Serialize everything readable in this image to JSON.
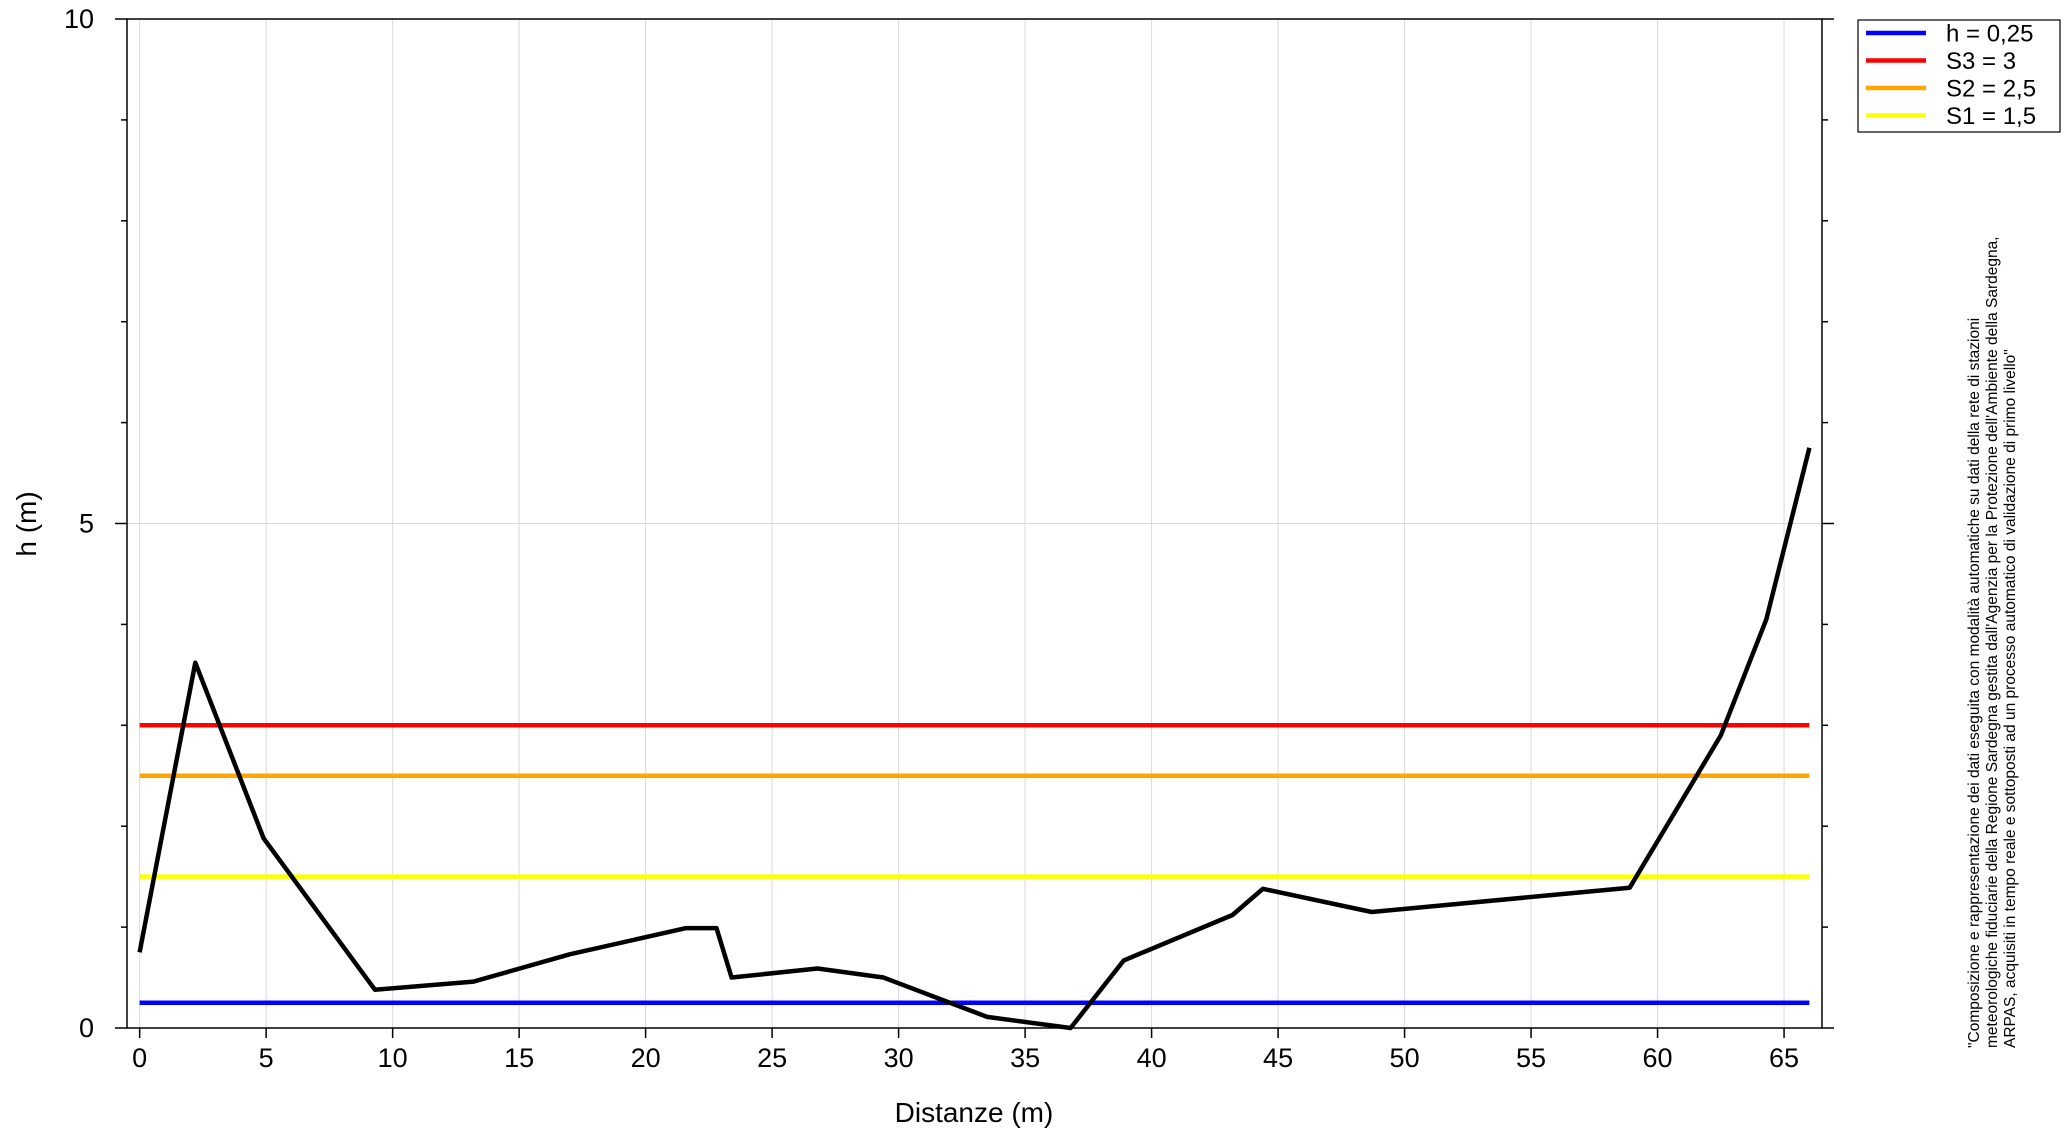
{
  "chart_data": {
    "type": "line",
    "xlabel": "Distanze (m)",
    "ylabel": "h (m)",
    "xlim": [
      -0.5,
      66.5
    ],
    "ylim": [
      0,
      10
    ],
    "x_ticks": [
      0,
      5,
      10,
      15,
      20,
      25,
      30,
      35,
      40,
      45,
      50,
      55,
      60,
      65
    ],
    "y_ticks": [
      0,
      5,
      10
    ],
    "y_minor_step": 1,
    "grid": true,
    "legend_position": "top-right, outside plot",
    "profile": {
      "color": "#000000",
      "x": [
        0,
        2.2,
        4.9,
        9.3,
        13.2,
        17.0,
        21.6,
        22.8,
        23.4,
        26.8,
        29.4,
        33.5,
        36.8,
        38.9,
        43.2,
        44.4,
        48.7,
        58.9,
        62.5,
        64.3,
        66.0
      ],
      "y": [
        0.75,
        3.62,
        1.88,
        0.38,
        0.46,
        0.73,
        0.99,
        0.99,
        0.5,
        0.59,
        0.5,
        0.11,
        0.0,
        0.67,
        1.12,
        1.38,
        1.15,
        1.39,
        2.9,
        4.05,
        5.75
      ]
    },
    "series": [
      {
        "name": "h = 0,25",
        "value": 0.25,
        "color": "#0000ff"
      },
      {
        "name": "S3 = 3",
        "value": 3.0,
        "color": "#ff0000"
      },
      {
        "name": "S2 = 2,5",
        "value": 2.5,
        "color": "#ffa500"
      },
      {
        "name": "S1 = 1,5",
        "value": 1.5,
        "color": "#ffff00"
      }
    ]
  },
  "note": {
    "line1": "\"Composizione e rappresentazione dei dati eseguita con modalità automatiche su dati della rete di stazioni",
    "line2": "meteorologiche fiduciarie della Regione Sardegna gestita dall'Agenzia per la Protezione dell'Ambiente della Sardegna,",
    "line3": "ARPAS, acquisiti in tempo reale e sottoposti ad un processo automatico di validazione di primo livello\""
  }
}
